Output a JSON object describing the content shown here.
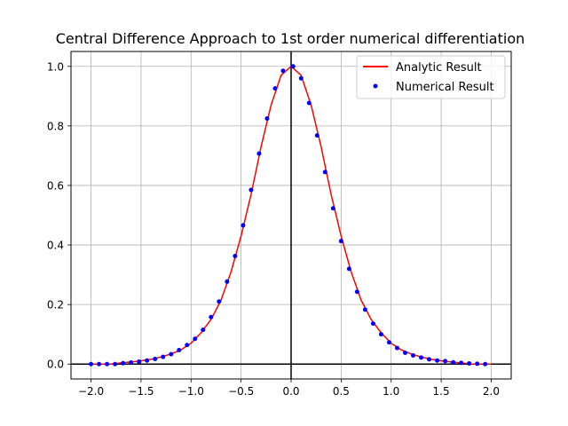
{
  "chart_data": {
    "type": "line",
    "title": "Central Difference Approach to 1st order numerical differentiation",
    "xlabel": "",
    "ylabel": "",
    "xlim": [
      -2.2,
      2.2
    ],
    "ylim": [
      -0.05,
      1.05
    ],
    "xticks": [
      -2.0,
      -1.5,
      -1.0,
      -0.5,
      0.0,
      0.5,
      1.0,
      1.5,
      2.0
    ],
    "xtick_labels": [
      "−2.0",
      "−1.5",
      "−1.0",
      "−0.5",
      "0.0",
      "0.5",
      "1.0",
      "1.5",
      "2.0"
    ],
    "yticks": [
      0.0,
      0.2,
      0.4,
      0.6,
      0.8,
      1.0
    ],
    "ytick_labels": [
      "0.0",
      "0.2",
      "0.4",
      "0.6",
      "0.8",
      "1.0"
    ],
    "grid": true,
    "axis_lines": {
      "x0": true,
      "y0": true,
      "color": "#000000"
    },
    "legend": {
      "placement": "upper right",
      "entries": [
        "Analytic Result",
        "Numerical Result"
      ]
    },
    "series": [
      {
        "name": "Analytic Result",
        "style": "line",
        "color": "#ff0000",
        "x": [
          -2.0,
          -1.9,
          -1.8,
          -1.7,
          -1.6,
          -1.5,
          -1.4,
          -1.3,
          -1.2,
          -1.1,
          -1.0,
          -0.9,
          -0.8,
          -0.7,
          -0.6,
          -0.5,
          -0.4,
          -0.3,
          -0.2,
          -0.1,
          0.0,
          0.1,
          0.2,
          0.3,
          0.4,
          0.5,
          0.6,
          0.7,
          0.8,
          0.9,
          1.0,
          1.1,
          1.2,
          1.3,
          1.4,
          1.5,
          1.6,
          1.7,
          1.8,
          1.9,
          2.0
        ],
        "y": [
          0.0,
          0.0,
          0.0,
          0.004,
          0.007,
          0.011,
          0.016,
          0.024,
          0.034,
          0.048,
          0.07,
          0.105,
          0.15,
          0.215,
          0.31,
          0.43,
          0.57,
          0.73,
          0.87,
          0.97,
          1.0,
          0.97,
          0.87,
          0.73,
          0.57,
          0.43,
          0.31,
          0.215,
          0.15,
          0.105,
          0.07,
          0.048,
          0.034,
          0.024,
          0.016,
          0.011,
          0.007,
          0.004,
          0.0,
          0.0,
          0.0
        ]
      },
      {
        "name": "Numerical Result",
        "style": "points",
        "color": "#0000ff",
        "x": [
          -2.0,
          -1.92,
          -1.84,
          -1.76,
          -1.68,
          -1.6,
          -1.52,
          -1.44,
          -1.36,
          -1.28,
          -1.2,
          -1.12,
          -1.04,
          -0.96,
          -0.88,
          -0.8,
          -0.72,
          -0.64,
          -0.56,
          -0.48,
          -0.4,
          -0.32,
          -0.24,
          -0.16,
          -0.08,
          0.02,
          0.1,
          0.18,
          0.26,
          0.34,
          0.42,
          0.5,
          0.58,
          0.66,
          0.74,
          0.82,
          0.9,
          0.98,
          1.06,
          1.14,
          1.22,
          1.3,
          1.38,
          1.46,
          1.54,
          1.62,
          1.7,
          1.78,
          1.86,
          1.94
        ],
        "y": [
          0.0,
          0.0,
          0.0,
          0.0,
          0.003,
          0.005,
          0.008,
          0.012,
          0.017,
          0.024,
          0.033,
          0.047,
          0.064,
          0.085,
          0.115,
          0.158,
          0.21,
          0.277,
          0.363,
          0.466,
          0.585,
          0.707,
          0.825,
          0.926,
          0.985,
          1.0,
          0.96,
          0.877,
          0.768,
          0.645,
          0.523,
          0.413,
          0.32,
          0.243,
          0.183,
          0.136,
          0.1,
          0.073,
          0.054,
          0.038,
          0.029,
          0.022,
          0.016,
          0.012,
          0.01,
          0.006,
          0.004,
          0.002,
          0.001,
          0.0
        ]
      }
    ]
  }
}
